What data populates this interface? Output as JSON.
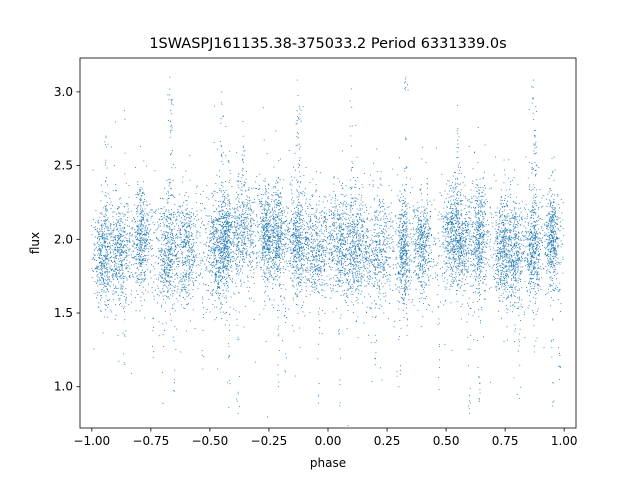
{
  "chart_data": {
    "type": "scatter",
    "title": "1SWASPJ161135.38-375033.2 Period 6331339.0s",
    "xlabel": "phase",
    "ylabel": "flux",
    "xlim": [
      -1.05,
      1.05
    ],
    "ylim": [
      0.72,
      3.23
    ],
    "x_ticks": [
      -1.0,
      -0.75,
      -0.5,
      -0.25,
      0.0,
      0.25,
      0.5,
      0.75,
      1.0
    ],
    "x_tick_labels": [
      "−1.00",
      "−0.75",
      "−0.50",
      "−0.25",
      "0.00",
      "0.25",
      "0.50",
      "0.75",
      "1.00"
    ],
    "y_ticks": [
      1.0,
      1.5,
      2.0,
      2.5,
      3.0
    ],
    "y_tick_labels": [
      "1.0",
      "1.5",
      "2.0",
      "2.5",
      "3.0"
    ],
    "grid": false,
    "legend": "none",
    "marker_color": "#1f77b4",
    "phase_range": [
      -1.0,
      1.0
    ],
    "baseline_flux": 1.97,
    "scatter_sigma": 0.17,
    "dense_phase_centers": [
      -0.95,
      -0.88,
      -0.79,
      -0.68,
      -0.6,
      -0.47,
      -0.43,
      -0.36,
      -0.26,
      -0.21,
      -0.13,
      -0.05,
      0.05,
      0.12,
      0.21,
      0.32,
      0.4,
      0.53,
      0.57,
      0.64,
      0.74,
      0.79,
      0.87,
      0.95
    ],
    "bright_outliers": [
      {
        "x": -0.67,
        "y": 3.1
      },
      {
        "x": -0.66,
        "y": 2.95
      },
      {
        "x": -0.13,
        "y": 3.08
      },
      {
        "x": -0.12,
        "y": 2.9
      },
      {
        "x": 0.33,
        "y": 3.1
      },
      {
        "x": 0.87,
        "y": 3.08
      },
      {
        "x": 0.88,
        "y": 2.9
      },
      {
        "x": -0.45,
        "y": 3.0
      },
      {
        "x": 0.1,
        "y": 3.02
      },
      {
        "x": -0.94,
        "y": 2.7
      },
      {
        "x": -0.36,
        "y": 2.8
      },
      {
        "x": 0.55,
        "y": 2.75
      }
    ],
    "faint_outliers": [
      {
        "x": -0.86,
        "y": 1.15
      },
      {
        "x": -0.74,
        "y": 1.2
      },
      {
        "x": -0.65,
        "y": 0.97
      },
      {
        "x": -0.53,
        "y": 1.12
      },
      {
        "x": -0.38,
        "y": 0.82
      },
      {
        "x": -0.42,
        "y": 0.86
      },
      {
        "x": -0.21,
        "y": 1.0
      },
      {
        "x": -0.04,
        "y": 0.89
      },
      {
        "x": 0.05,
        "y": 0.87
      },
      {
        "x": 0.3,
        "y": 1.0
      },
      {
        "x": 0.47,
        "y": 0.98
      },
      {
        "x": 0.6,
        "y": 0.82
      },
      {
        "x": 0.64,
        "y": 0.9
      },
      {
        "x": 0.81,
        "y": 0.92
      },
      {
        "x": 0.95,
        "y": 0.87
      },
      {
        "x": 0.98,
        "y": 1.05
      },
      {
        "x": -0.18,
        "y": 1.1
      },
      {
        "x": 0.2,
        "y": 1.15
      }
    ]
  }
}
